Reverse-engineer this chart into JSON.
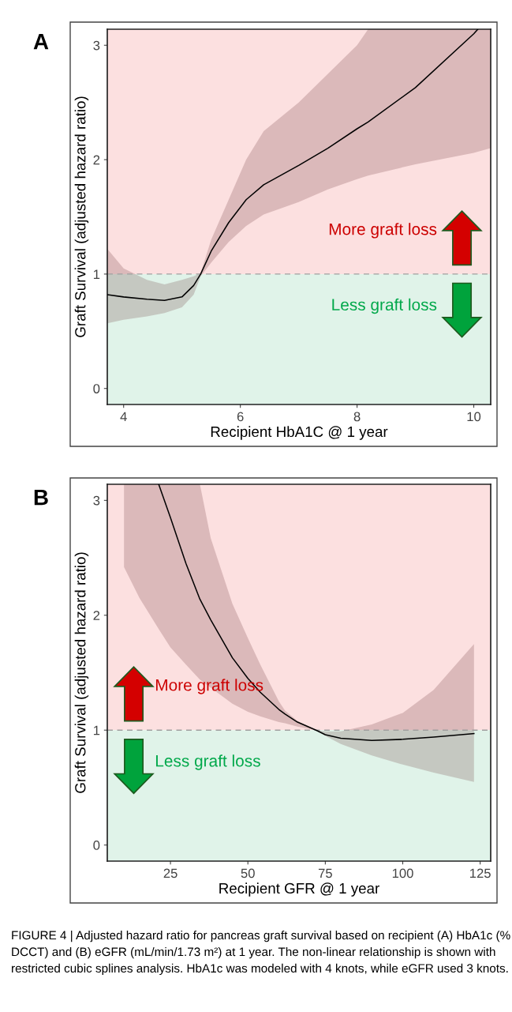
{
  "chart_data": [
    {
      "type": "line",
      "title": "A",
      "xlabel": "Recipient HbA1C @ 1 year",
      "ylabel": "Graft Survival (adjusted hazard ratio)",
      "xlim": [
        3.72,
        10.29
      ],
      "xticks": [
        4,
        6,
        8,
        10
      ],
      "ylim": [
        -0.14,
        3.14
      ],
      "yticks": [
        0,
        1,
        2,
        3
      ],
      "grid": false,
      "series": [
        {
          "color": "#000000",
          "x": [
            3.72,
            4,
            4.4,
            4.7,
            5,
            5.2,
            5.32,
            5.5,
            5.8,
            6.1,
            6.4,
            7,
            7.5,
            8,
            8.19,
            9,
            10,
            10.07,
            10.29
          ],
          "values": [
            0.82,
            0.8,
            0.78,
            0.77,
            0.8,
            0.9,
            1.0,
            1.2,
            1.45,
            1.65,
            1.78,
            1.95,
            2.1,
            2.27,
            2.33,
            2.63,
            3.1,
            3.14,
            null
          ],
          "lower": [
            0.57,
            0.6,
            0.63,
            0.66,
            0.71,
            0.82,
            0.98,
            1.1,
            1.28,
            1.42,
            1.52,
            1.63,
            1.74,
            1.83,
            1.86,
            1.96,
            2.06,
            2.07,
            2.1
          ],
          "upper": [
            1.22,
            1.05,
            0.95,
            0.91,
            0.95,
            0.98,
            1.01,
            1.3,
            1.65,
            2.0,
            2.25,
            2.5,
            2.75,
            3.0,
            3.14,
            3.14,
            3.14,
            3.14,
            3.14
          ]
        }
      ],
      "ref_lines": [
        {
          "axis": "y",
          "value": 1,
          "color": "#a0a0a0",
          "line_style": "dashed"
        }
      ],
      "bands": [
        {
          "axis": "y",
          "from": 1,
          "to": 3.14,
          "color": "#fce0e0"
        },
        {
          "axis": "y",
          "from": -0.14,
          "to": 1,
          "color": "#e0f3e9"
        }
      ],
      "annotations": [
        "More graft loss",
        "Less graft loss"
      ]
    },
    {
      "type": "line",
      "title": "B",
      "xlabel": "Recipient GFR @ 1 year",
      "ylabel": "Graft Survival (adjusted hazard ratio)",
      "xlim": [
        4.6,
        128.4
      ],
      "xticks": [
        25,
        50,
        75,
        100,
        125
      ],
      "ylim": [
        -0.14,
        3.14
      ],
      "yticks": [
        0,
        1,
        2,
        3
      ],
      "grid": false,
      "series": [
        {
          "color": "#000000",
          "x": [
            10,
            15,
            21.2,
            25,
            30,
            34.5,
            38,
            45,
            50,
            54,
            60,
            62,
            66,
            72,
            75,
            80,
            90,
            100,
            110,
            123
          ],
          "values": [
            null,
            null,
            3.14,
            2.85,
            2.45,
            2.14,
            1.96,
            1.63,
            1.45,
            1.33,
            1.18,
            1.14,
            1.07,
            1.0,
            0.96,
            0.93,
            0.91,
            0.92,
            0.94,
            0.97
          ],
          "lower": [
            2.42,
            2.15,
            1.88,
            1.72,
            1.57,
            1.44,
            1.37,
            1.23,
            1.16,
            1.12,
            1.07,
            1.06,
            1.03,
            1.0,
            0.95,
            0.88,
            0.78,
            0.7,
            0.63,
            0.55
          ],
          "upper": [
            3.14,
            3.14,
            3.14,
            3.14,
            3.14,
            3.14,
            2.67,
            2.1,
            1.8,
            1.57,
            1.25,
            1.17,
            1.08,
            1.0,
            0.99,
            0.99,
            1.05,
            1.15,
            1.35,
            1.75
          ]
        }
      ],
      "ref_lines": [
        {
          "axis": "y",
          "value": 1,
          "color": "#a0a0a0",
          "line_style": "dashed"
        }
      ],
      "bands": [
        {
          "axis": "y",
          "from": 1,
          "to": 3.14,
          "color": "#fce0e0"
        },
        {
          "axis": "y",
          "from": -0.14,
          "to": 1,
          "color": "#e0f3e9"
        }
      ],
      "annotations": [
        "More graft loss",
        "Less graft loss",
        "FIGURE 4 | Adjusted hazard ratio for pancreas graft survival based on recipient (A) HbA1c (% DCCT) and (B) eGFR (mL/min/1.73 m²) at 1 year. The non-linear relationship is shown with restricted cubic splines analysis. HbA1c was modeled with 4 knots, while eGFR used 3 knots."
      ]
    }
  ]
}
